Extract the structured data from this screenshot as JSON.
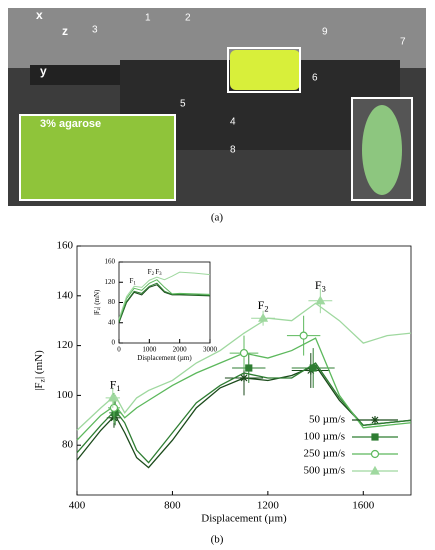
{
  "figure_a": {
    "labels": [
      "1",
      "2",
      "3",
      "4",
      "5",
      "6",
      "7",
      "8",
      "9"
    ],
    "axes": [
      "x",
      "y",
      "z"
    ],
    "inset_text": "3% agarose",
    "caption": "(a)"
  },
  "caption_b": "(b)",
  "chart_data": [
    {
      "type": "line",
      "title_parts": null,
      "x_label": "Displacement (µm)",
      "y_label": {
        "main": "|F",
        "sub": "z",
        "end": "| (mN)"
      },
      "xlim": [
        400,
        1800
      ],
      "xticks": [
        400,
        800,
        1200,
        1600
      ],
      "ylim": [
        60,
        160
      ],
      "yticks": [
        80,
        100,
        120,
        140,
        160
      ],
      "x": [
        400,
        500,
        560,
        600,
        650,
        700,
        800,
        900,
        1000,
        1100,
        1200,
        1300,
        1400,
        1500,
        1600,
        1700,
        1800
      ],
      "legend": "lower right",
      "annotations": [
        {
          "main": "F",
          "sub": "1",
          "x": 560,
          "y": 104
        },
        {
          "main": "F",
          "sub": "2",
          "x": 1180,
          "y": 136
        },
        {
          "main": "F",
          "sub": "3",
          "x": 1420,
          "y": 144
        }
      ],
      "series": [
        {
          "name": "50 µm/s",
          "color": "#1b4a1b",
          "marker": "asterisk",
          "values": [
            74,
            86,
            92,
            85,
            75,
            71,
            82,
            95,
            103,
            107,
            106,
            108,
            112,
            98,
            88,
            89,
            90
          ],
          "markers": {
            "x": [
              555,
              1100,
              1380
            ],
            "y": [
              91,
              107,
              110
            ],
            "xerr": [
              30,
              80,
              80
            ],
            "yerr": [
              4,
              7,
              7
            ]
          }
        },
        {
          "name": "100 µm/s",
          "color": "#2e7d32",
          "marker": "square",
          "values": [
            77,
            88,
            94,
            89,
            78,
            73,
            85,
            97,
            104,
            109,
            107,
            107,
            113,
            99,
            88,
            89,
            90
          ],
          "markers": {
            "x": [
              560,
              1120,
              1390
            ],
            "y": [
              93,
              111,
              111
            ],
            "xerr": [
              25,
              70,
              90
            ],
            "yerr": [
              5,
              6,
              8
            ]
          }
        },
        {
          "name": "250 µm/s",
          "color": "#5cb85c",
          "marker": "circle",
          "values": [
            82,
            92,
            96,
            91,
            95,
            98,
            104,
            109,
            113,
            117,
            115,
            118,
            123,
            100,
            87,
            88,
            89
          ],
          "markers": {
            "x": [
              555,
              1100,
              1350
            ],
            "y": [
              95,
              117,
              124
            ],
            "xerr": [
              25,
              60,
              70
            ],
            "yerr": [
              6,
              7,
              8
            ]
          }
        },
        {
          "name": "500 µm/s",
          "color": "#9fd89f",
          "marker": "triangle",
          "values": [
            86,
            95,
            100,
            93,
            99,
            102,
            106,
            113,
            118,
            125,
            131,
            130,
            137,
            130,
            121,
            124,
            125
          ],
          "markers": {
            "x": [
              550,
              1180,
              1420
            ],
            "y": [
              99,
              131,
              138
            ],
            "xerr": [
              30,
              50,
              50
            ],
            "yerr": [
              4,
              3,
              5
            ]
          }
        }
      ]
    },
    {
      "type": "line",
      "x_label": "Displacement (µm)",
      "y_label": {
        "main": "|F",
        "sub": "z",
        "end": "| (mN)"
      },
      "xlim": [
        0,
        3000
      ],
      "xticks": [
        0,
        1000,
        2000,
        3000
      ],
      "ylim": [
        0,
        160
      ],
      "yticks": [
        0,
        40,
        80,
        120,
        160
      ],
      "x": [
        0,
        250,
        500,
        750,
        1000,
        1250,
        1500,
        1750,
        2000,
        2500,
        3000
      ],
      "annotations": [
        {
          "main": "F",
          "sub": "1",
          "x": 450,
          "y": 122
        },
        {
          "main": "F",
          "sub": "2",
          "x": 1050,
          "y": 140
        },
        {
          "main": "F",
          "sub": "3",
          "x": 1300,
          "y": 140
        }
      ],
      "series": [
        {
          "color": "#1b4a1b",
          "values": [
            40,
            80,
            100,
            95,
            110,
            115,
            100,
            95,
            95,
            94,
            93
          ]
        },
        {
          "color": "#2e7d32",
          "values": [
            42,
            82,
            102,
            98,
            112,
            118,
            102,
            96,
            96,
            95,
            94
          ]
        },
        {
          "color": "#5cb85c",
          "values": [
            45,
            88,
            108,
            104,
            118,
            125,
            110,
            97,
            98,
            97,
            96
          ]
        },
        {
          "color": "#9fd89f",
          "values": [
            48,
            92,
            112,
            110,
            124,
            130,
            125,
            132,
            140,
            138,
            135
          ]
        }
      ]
    }
  ]
}
